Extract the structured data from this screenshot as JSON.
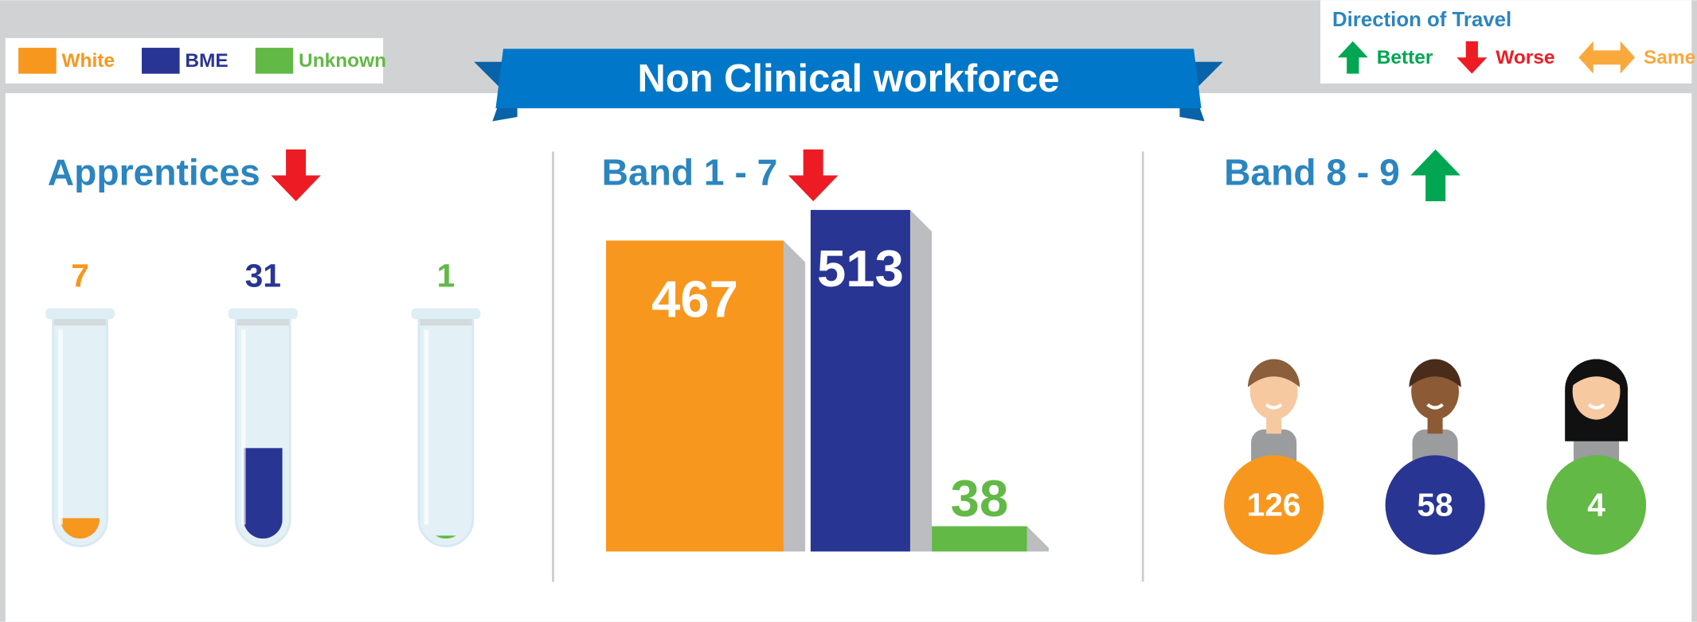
{
  "title": "Non Clinical workforce",
  "legend": [
    {
      "name": "White",
      "color": "#f7971e"
    },
    {
      "name": "BME",
      "color": "#283593"
    },
    {
      "name": "Unknown",
      "color": "#62b946"
    }
  ],
  "direction_legend": {
    "title": "Direction of Travel",
    "items": [
      {
        "label": "Better",
        "color": "#00a651",
        "direction": "up"
      },
      {
        "label": "Worse",
        "color": "#ed1c24",
        "direction": "down"
      },
      {
        "label": "Same",
        "color": "#f9a93c",
        "direction": "both"
      }
    ]
  },
  "chart_data": [
    {
      "type": "tube",
      "title": "Apprentices",
      "direction": "down",
      "values": [
        7,
        31,
        1
      ]
    },
    {
      "type": "bar",
      "title": "Band 1 - 7",
      "direction": "down",
      "values": [
        467,
        513,
        38
      ]
    },
    {
      "type": "circle",
      "title": "Band 8 - 9",
      "direction": "up",
      "values": [
        126,
        58,
        4
      ]
    }
  ]
}
